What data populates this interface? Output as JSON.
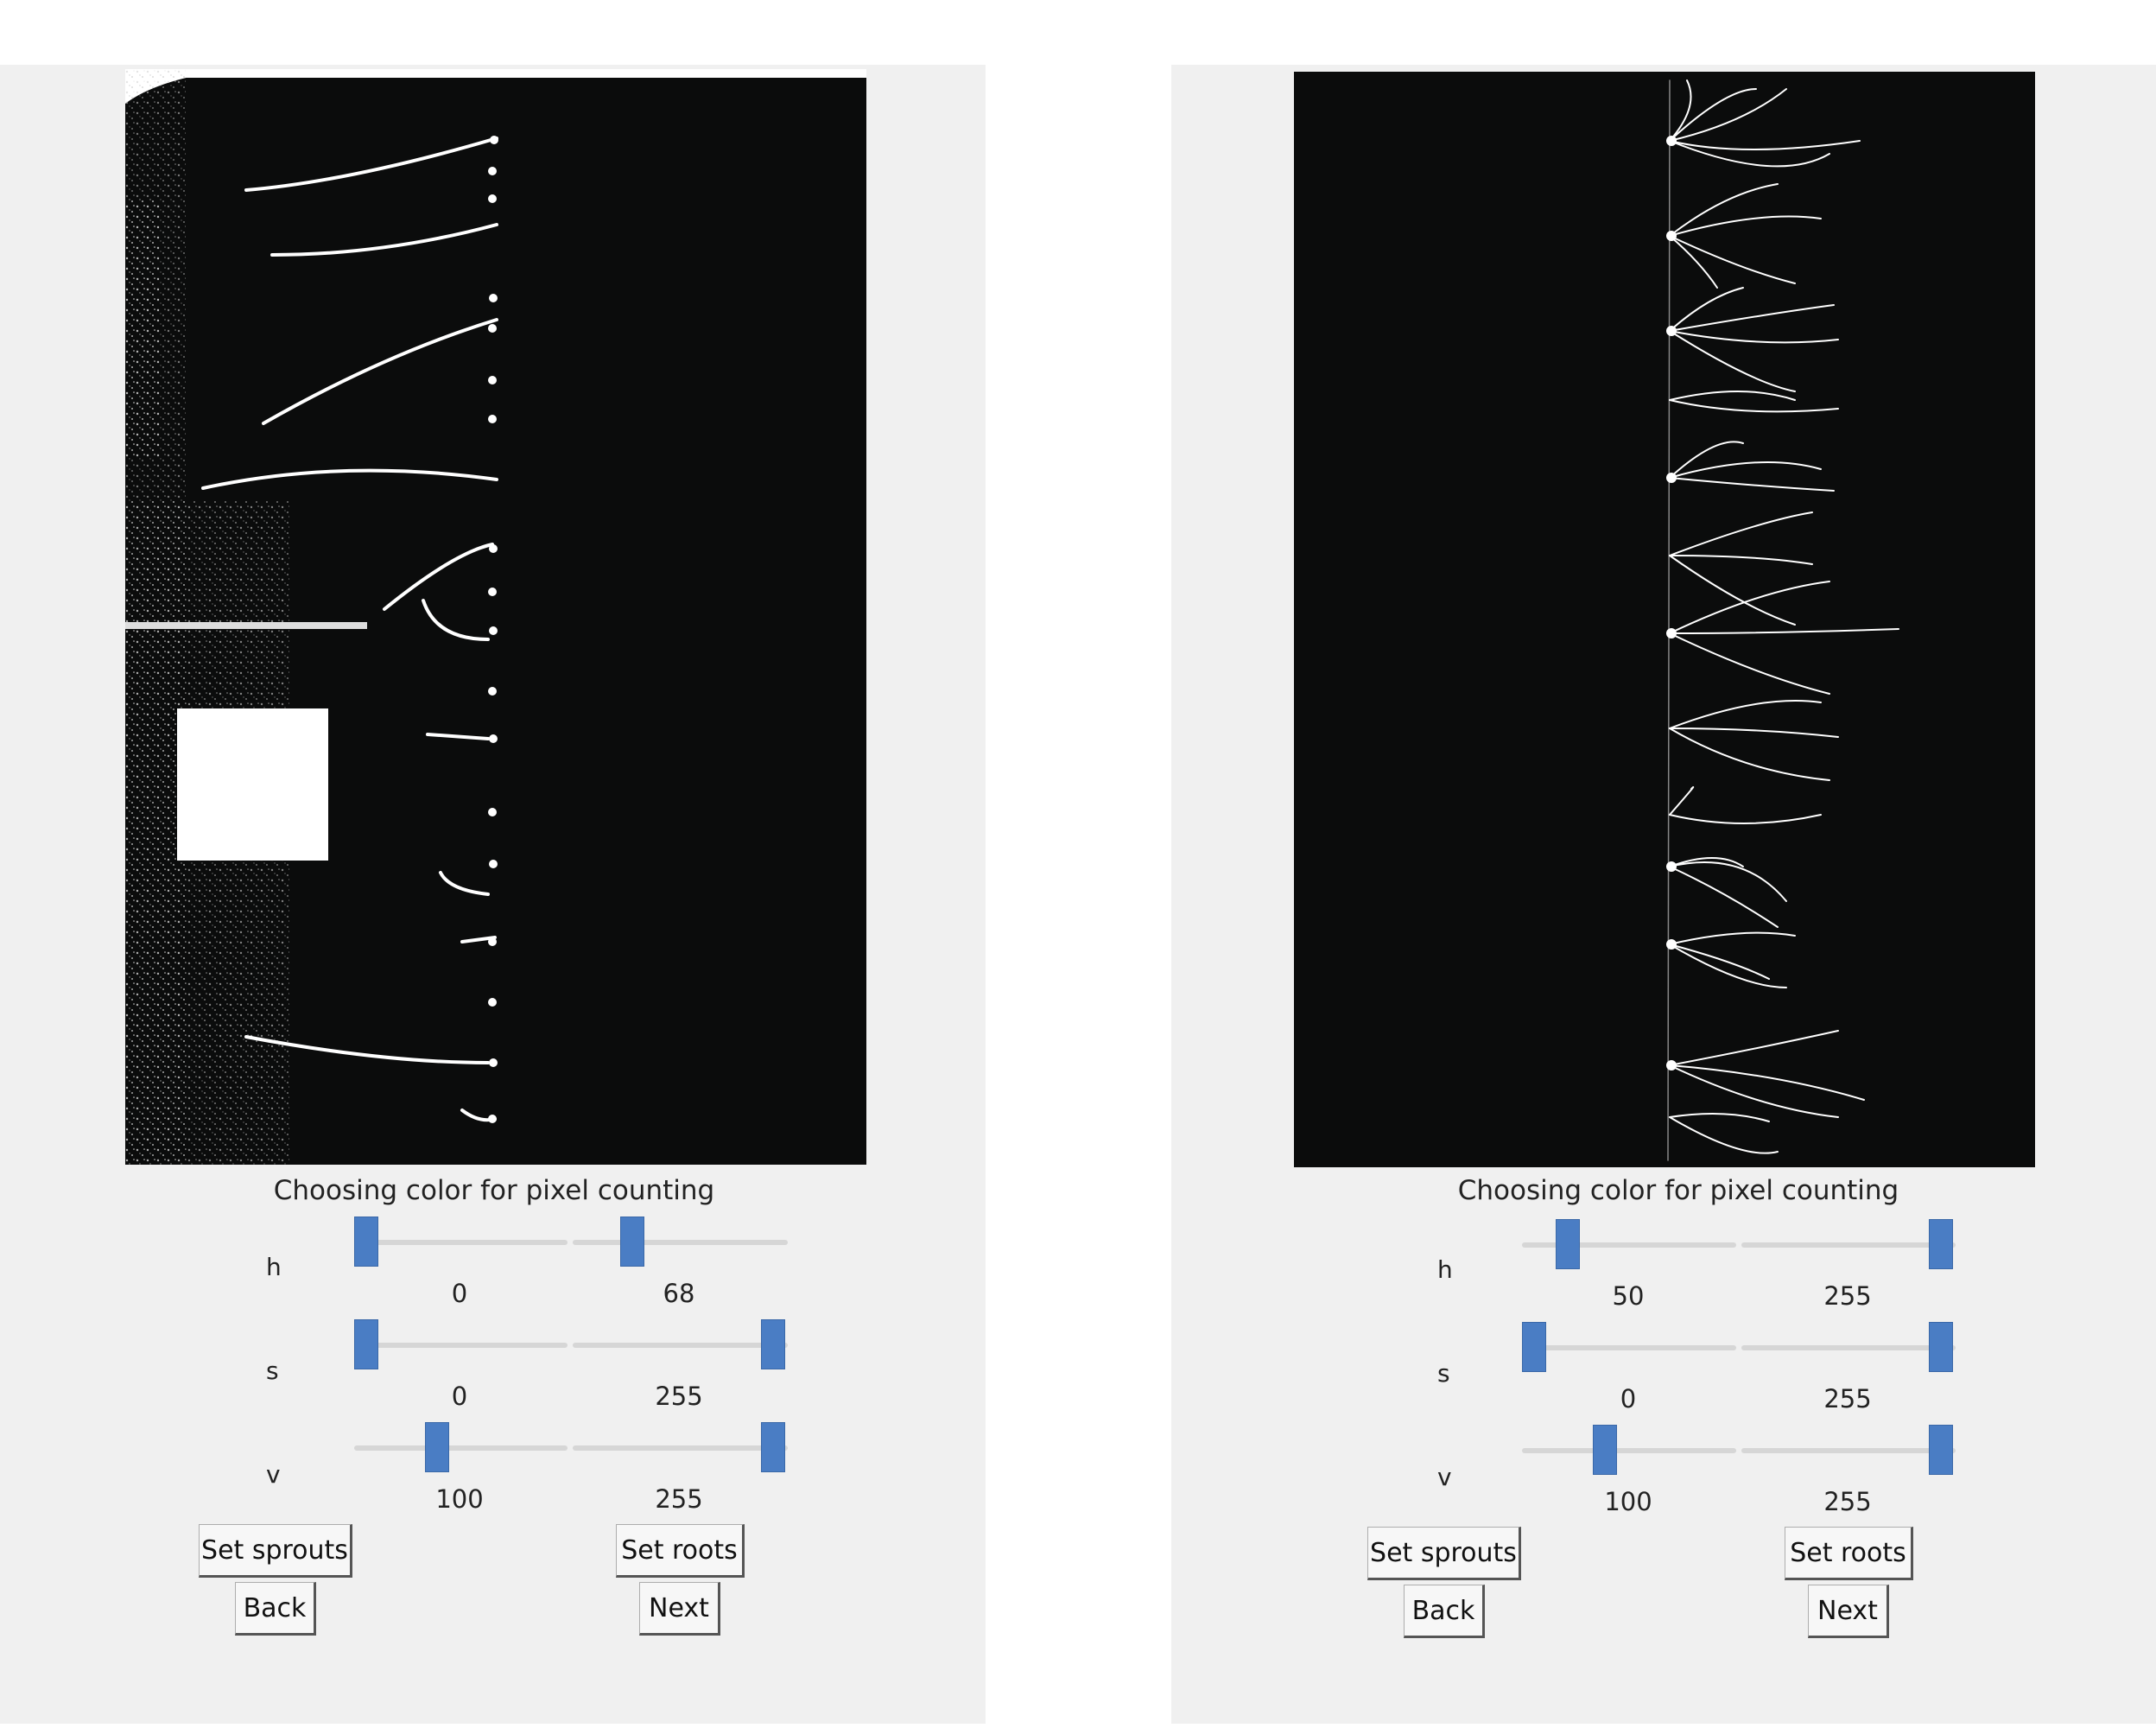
{
  "panels": [
    {
      "caption": "Choosing color for pixel counting",
      "sliders": [
        {
          "label": "h",
          "low": 0,
          "high": 68,
          "max": 255
        },
        {
          "label": "s",
          "low": 0,
          "high": 255,
          "max": 255
        },
        {
          "label": "v",
          "low": 100,
          "high": 255,
          "max": 255
        }
      ],
      "buttons": {
        "set_sprouts": "Set sprouts",
        "set_roots": "Set roots",
        "back": "Back",
        "next": "Next"
      }
    },
    {
      "caption": "Choosing color for pixel counting",
      "sliders": [
        {
          "label": "h",
          "low": 50,
          "high": 255,
          "max": 255
        },
        {
          "label": "s",
          "low": 0,
          "high": 255,
          "max": 255
        },
        {
          "label": "v",
          "low": 100,
          "high": 255,
          "max": 255
        }
      ],
      "buttons": {
        "set_sprouts": "Set sprouts",
        "set_roots": "Set roots",
        "back": "Back",
        "next": "Next"
      }
    }
  ],
  "colors": {
    "panel_bg": "#f0f0f0",
    "image_bg": "#0b0c0c",
    "slider_thumb": "#4a7dc4"
  }
}
